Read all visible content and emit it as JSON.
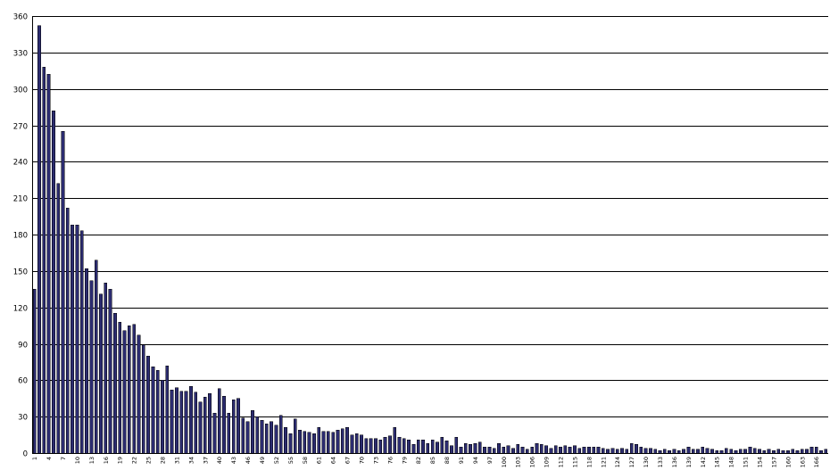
{
  "chart_data": {
    "type": "bar",
    "title": "",
    "xlabel": "",
    "ylabel": "",
    "ylim": [
      0,
      360
    ],
    "yticks": [
      0,
      30,
      60,
      90,
      120,
      150,
      180,
      210,
      240,
      270,
      300,
      330,
      360
    ],
    "grid": true,
    "legend": "none",
    "bar_color": "#2c2c70",
    "categories": [
      1,
      2,
      3,
      4,
      5,
      6,
      7,
      8,
      9,
      10,
      11,
      12,
      13,
      14,
      15,
      16,
      17,
      18,
      19,
      20,
      21,
      22,
      23,
      24,
      25,
      26,
      27,
      28,
      29,
      30,
      31,
      32,
      33,
      34,
      35,
      36,
      37,
      38,
      39,
      40,
      41,
      42,
      43,
      44,
      45,
      46,
      47,
      48,
      49,
      50,
      51,
      52,
      53,
      54,
      55,
      56,
      57,
      58,
      59,
      60,
      61,
      62,
      63,
      64,
      65,
      66,
      67,
      68,
      69,
      70,
      71,
      72,
      73,
      74,
      75,
      76,
      77,
      78,
      79,
      80,
      81,
      82,
      83,
      84,
      85,
      86,
      87,
      88,
      89,
      90,
      91,
      92,
      93,
      94,
      95,
      96,
      97,
      98,
      99,
      100,
      101,
      102,
      103,
      104,
      105,
      106,
      107,
      108,
      109,
      110,
      111,
      112,
      113,
      114,
      115,
      116,
      117,
      118,
      119,
      120,
      121,
      122,
      123,
      124,
      125,
      126,
      127,
      128,
      129,
      130,
      131,
      132,
      133,
      134,
      135,
      136,
      137,
      138,
      139,
      140,
      141,
      142,
      143,
      144,
      145,
      146,
      147,
      148,
      149,
      150,
      151,
      152,
      153,
      154,
      155,
      156,
      157,
      158,
      159,
      160,
      161,
      162,
      163,
      164,
      165,
      166,
      167,
      168
    ],
    "xtick_labels": [
      "1",
      "4",
      "7",
      "10",
      "13",
      "16",
      "19",
      "22",
      "25",
      "28",
      "31",
      "34",
      "37",
      "40",
      "43",
      "46",
      "49",
      "52",
      "55",
      "58",
      "61",
      "64",
      "67",
      "70",
      "73",
      "76",
      "79",
      "82",
      "85",
      "88",
      "91",
      "94",
      "97",
      "100",
      "103",
      "106",
      "109",
      "112",
      "115",
      "118",
      "121",
      "124",
      "127",
      "130",
      "133",
      "136",
      "139",
      "142",
      "145",
      "148",
      "151",
      "154",
      "157",
      "160",
      "163",
      "166"
    ],
    "values": [
      135,
      352,
      318,
      312,
      282,
      222,
      265,
      202,
      188,
      188,
      183,
      152,
      142,
      159,
      131,
      140,
      135,
      115,
      108,
      101,
      105,
      106,
      97,
      89,
      80,
      71,
      68,
      60,
      72,
      52,
      54,
      51,
      51,
      55,
      50,
      42,
      46,
      49,
      33,
      53,
      47,
      33,
      44,
      45,
      29,
      26,
      35,
      30,
      27,
      24,
      26,
      23,
      31,
      21,
      16,
      28,
      19,
      18,
      17,
      16,
      21,
      18,
      18,
      17,
      19,
      20,
      21,
      15,
      16,
      15,
      12,
      12,
      12,
      11,
      13,
      14,
      21,
      13,
      12,
      11,
      7,
      11,
      11,
      8,
      11,
      9,
      13,
      10,
      6,
      13,
      5,
      8,
      7,
      8,
      9,
      5,
      5,
      4,
      8,
      5,
      6,
      4,
      7,
      5,
      3,
      5,
      8,
      7,
      6,
      4,
      6,
      5,
      6,
      5,
      6,
      4,
      5,
      5,
      5,
      5,
      4,
      3,
      4,
      3,
      4,
      3,
      8,
      7,
      5,
      4,
      4,
      3,
      2,
      3,
      2,
      3,
      2,
      3,
      5,
      3,
      3,
      5,
      4,
      3,
      2,
      2,
      4,
      3,
      2,
      3,
      3,
      5,
      4,
      3,
      2,
      3,
      2,
      3,
      2,
      2,
      3,
      2,
      3,
      3,
      5,
      5,
      2,
      3
    ]
  }
}
